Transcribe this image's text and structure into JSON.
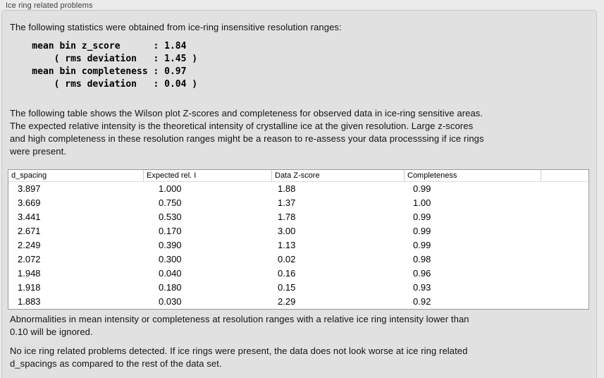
{
  "section": {
    "title": "Ice ring related problems"
  },
  "intro": "The following statistics were obtained from ice-ring insensitive resolution ranges:",
  "stats_block": "    mean bin z_score      : 1.84\n        ( rms deviation   : 1.45 )\n    mean bin completeness : 0.97\n        ( rms deviation   : 0.04 )",
  "statistics": {
    "mean_bin_z_score": "1.84",
    "z_score_rms_deviation": "1.45",
    "mean_bin_completeness": "0.97",
    "completeness_rms_deviation": "0.04"
  },
  "table_description": "The following table shows the Wilson plot Z-scores and completeness for observed data in ice-ring sensitive areas.\nThe expected relative intensity is the theoretical intensity of crystalline ice at the given resolution. Large z-scores\nand high completeness in these resolution ranges might be a reason to re-assess your data processsing if ice rings\nwere present.",
  "table": {
    "columns": [
      "d_spacing",
      "Expected rel. I",
      "Data Z-score",
      "Completeness",
      ""
    ],
    "rows": [
      [
        "3.897",
        "1.000",
        "1.88",
        "0.99"
      ],
      [
        "3.669",
        "0.750",
        "1.37",
        "1.00"
      ],
      [
        "3.441",
        "0.530",
        "1.78",
        "0.99"
      ],
      [
        "2.671",
        "0.170",
        "3.00",
        "0.99"
      ],
      [
        "2.249",
        "0.390",
        "1.13",
        "0.99"
      ],
      [
        "2.072",
        "0.300",
        "0.02",
        "0.98"
      ],
      [
        "1.948",
        "0.040",
        "0.16",
        "0.96"
      ],
      [
        "1.918",
        "0.180",
        "0.15",
        "0.93"
      ],
      [
        "1.883",
        "0.030",
        "2.29",
        "0.92"
      ]
    ]
  },
  "ignore_note": "Abnormalities in mean intensity or completeness at resolution ranges with a relative ice ring intensity lower than\n0.10 will be ignored.",
  "conclusion": "No ice ring related problems detected. If ice rings were present, the data does not look worse at ice ring related\nd_spacings as compared to the rest of the data set.",
  "colors": {
    "panel_background": "#ebebeb",
    "groupbox_background": "#e1e1e1",
    "groupbox_border": "#c7c7c7",
    "table_background": "#ffffff",
    "table_border": "#9b9b9b"
  }
}
